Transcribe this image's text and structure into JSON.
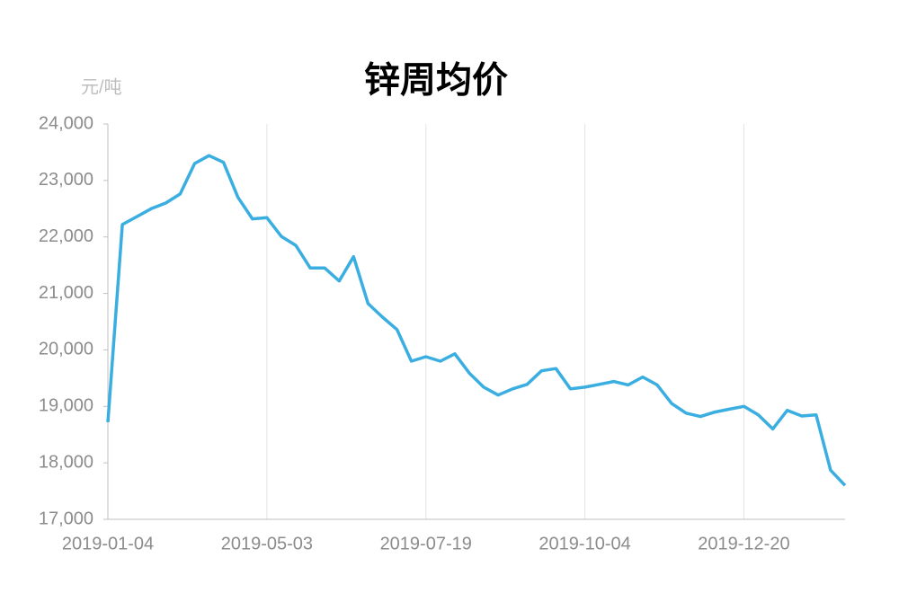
{
  "chart_data": {
    "type": "line",
    "title": "锌周均价",
    "y_unit": "元/吨",
    "categories": [
      "2019-01-04",
      null,
      null,
      null,
      null,
      null,
      null,
      null,
      null,
      null,
      null,
      "2019-05-03",
      null,
      null,
      null,
      null,
      null,
      null,
      null,
      null,
      null,
      null,
      "2019-07-19",
      null,
      null,
      null,
      null,
      null,
      null,
      null,
      null,
      null,
      null,
      "2019-10-04",
      null,
      null,
      null,
      null,
      null,
      null,
      null,
      null,
      null,
      null,
      "2019-12-20",
      null,
      null,
      null,
      null,
      null,
      null,
      null
    ],
    "values": [
      18720,
      22220,
      22360,
      22500,
      22600,
      22760,
      23300,
      23440,
      23320,
      22700,
      22320,
      22340,
      22010,
      21850,
      21450,
      21450,
      21220,
      21650,
      20820,
      20580,
      20360,
      19800,
      19880,
      19800,
      19930,
      19590,
      19340,
      19200,
      19310,
      19390,
      19630,
      19670,
      19310,
      19340,
      19390,
      19440,
      19380,
      19520,
      19380,
      19050,
      18880,
      18820,
      18900,
      18950,
      19000,
      18850,
      18600,
      18930,
      18830,
      18850,
      17870,
      17600
    ],
    "color": "#3aaee0",
    "ylim": [
      17000,
      24000
    ],
    "yticks": [
      {
        "value": 17000,
        "label": "17,000"
      },
      {
        "value": 18000,
        "label": "18,000"
      },
      {
        "value": 19000,
        "label": "19,000"
      },
      {
        "value": 20000,
        "label": "20,000"
      },
      {
        "value": 21000,
        "label": "21,000"
      },
      {
        "value": 22000,
        "label": "22,000"
      },
      {
        "value": 23000,
        "label": "23,000"
      },
      {
        "value": 24000,
        "label": "24,000"
      }
    ],
    "grid": "x"
  }
}
